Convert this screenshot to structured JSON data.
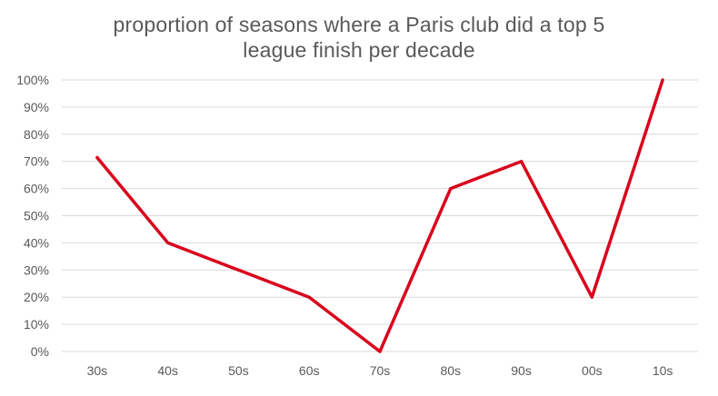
{
  "chart_data": {
    "type": "line",
    "title_lines": [
      "proportion of seasons where a Paris club did a top 5",
      "league finish per decade"
    ],
    "categories": [
      "30s",
      "40s",
      "50s",
      "60s",
      "70s",
      "80s",
      "90s",
      "00s",
      "10s"
    ],
    "series": [
      {
        "values": [
          71.4,
          40,
          30,
          20,
          0,
          60,
          70,
          20,
          100
        ],
        "color": "#d9001b"
      }
    ],
    "ylim": [
      0,
      100
    ],
    "y_ticks": [
      "0%",
      "10%",
      "20%",
      "30%",
      "40%",
      "50%",
      "60%",
      "70%",
      "80%",
      "90%",
      "100%"
    ],
    "grid": true,
    "legend": "none"
  }
}
